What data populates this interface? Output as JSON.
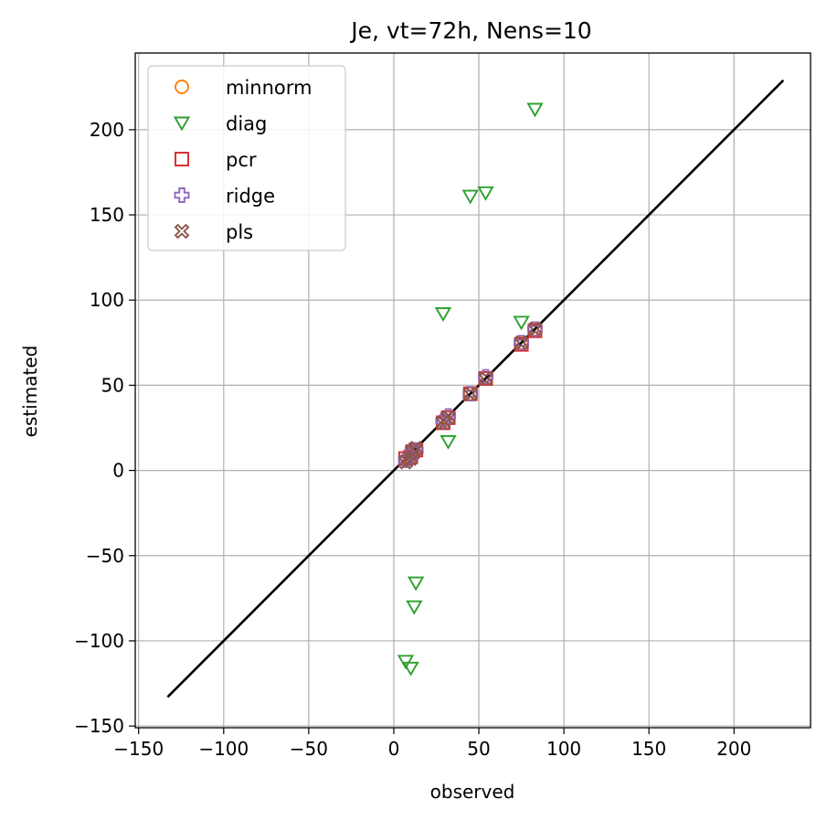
{
  "chart_data": {
    "type": "scatter",
    "title": "Je, vt=72h, Nens=10",
    "xlabel": "observed",
    "ylabel": "estimated",
    "xlim": [
      -152,
      245
    ],
    "ylim": [
      -151,
      245
    ],
    "xticks": [
      -150,
      -100,
      -50,
      0,
      50,
      100,
      150,
      200
    ],
    "yticks": [
      -150,
      -100,
      -50,
      0,
      50,
      100,
      150,
      200
    ],
    "xtick_labels": [
      "−150",
      "−100",
      "−50",
      "0",
      "50",
      "100",
      "150",
      "200"
    ],
    "ytick_labels": [
      "−150",
      "−100",
      "−50",
      "0",
      "50",
      "100",
      "150",
      "200"
    ],
    "grid": true,
    "legend_position": "top-left",
    "reference_line": {
      "x": [
        -133,
        229
      ],
      "y": [
        -133,
        229
      ],
      "color": "#000000"
    },
    "series": [
      {
        "name": "minnorm",
        "marker": "circle",
        "color": "#ff7f0e",
        "x": [
          7,
          10,
          11,
          13,
          29,
          32,
          45,
          54,
          75,
          83
        ],
        "y": [
          6,
          8,
          11,
          12,
          29,
          31,
          45,
          54,
          75,
          83
        ]
      },
      {
        "name": "diag",
        "marker": "triangle-down",
        "color": "#2ca02c",
        "x": [
          7,
          10,
          12,
          13,
          29,
          32,
          45,
          54,
          75,
          83
        ],
        "y": [
          -112,
          -116,
          -80,
          -66,
          92,
          17,
          161,
          163,
          87,
          212
        ]
      },
      {
        "name": "pcr",
        "marker": "square",
        "color": "#d62728",
        "x": [
          7,
          10,
          11,
          13,
          29,
          32,
          45,
          54,
          75,
          83
        ],
        "y": [
          7,
          8,
          11,
          12,
          28,
          31,
          45,
          54,
          74,
          82
        ]
      },
      {
        "name": "ridge",
        "marker": "plus",
        "color": "#9467bd",
        "x": [
          7,
          10,
          11,
          13,
          29,
          32,
          45,
          54,
          75,
          83
        ],
        "y": [
          6,
          8,
          12,
          12,
          29,
          32,
          45,
          55,
          75,
          83
        ]
      },
      {
        "name": "pls",
        "marker": "x",
        "color": "#8c564b",
        "x": [
          7,
          10,
          11,
          13,
          29,
          32,
          45,
          54,
          75,
          83
        ],
        "y": [
          5,
          7,
          11,
          13,
          28,
          31,
          45,
          54,
          75,
          83
        ]
      }
    ]
  }
}
